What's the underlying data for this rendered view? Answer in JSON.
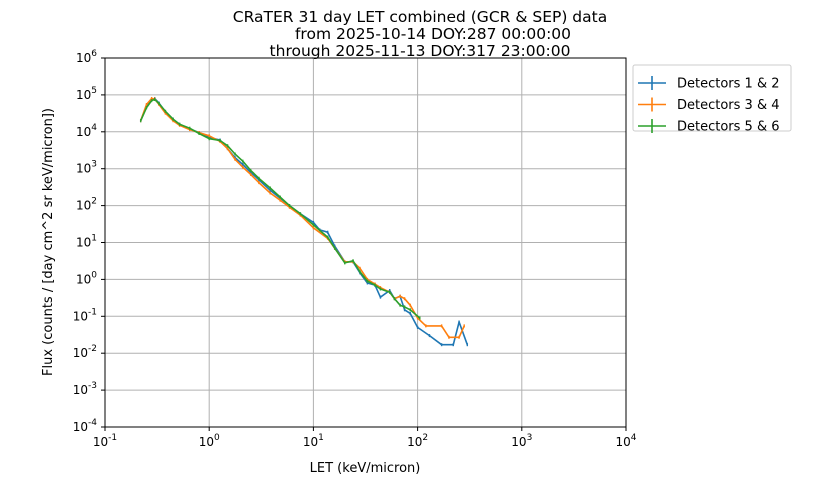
{
  "chart_data": {
    "type": "line",
    "title_lines": [
      "CRaTER 31 day LET combined (GCR & SEP) data",
      "from 2025-10-14 DOY:287 00:00:00",
      "through 2025-11-13 DOY:317 23:00:00"
    ],
    "xlabel": "LET (keV/micron)",
    "ylabel": "Flux (counts / [day cm^2 sr keV/micron])",
    "xscale": "log",
    "yscale": "log",
    "xlim": [
      0.1,
      10000
    ],
    "ylim": [
      0.0001,
      1000000
    ],
    "grid": true,
    "legend_position": "outside-top-right",
    "x_ticks": [
      {
        "exp": "-1"
      },
      {
        "exp": "0"
      },
      {
        "exp": "1"
      },
      {
        "exp": "2"
      },
      {
        "exp": "3"
      },
      {
        "exp": "4"
      }
    ],
    "y_ticks": [
      {
        "exp": "-4"
      },
      {
        "exp": "-3"
      },
      {
        "exp": "-2"
      },
      {
        "exp": "-1"
      },
      {
        "exp": "0"
      },
      {
        "exp": "1"
      },
      {
        "exp": "2"
      },
      {
        "exp": "3"
      },
      {
        "exp": "4"
      },
      {
        "exp": "5"
      },
      {
        "exp": "6"
      }
    ],
    "series": [
      {
        "name": "Detectors 1 & 2",
        "color": "#1f77b4",
        "x": [
          0.22,
          0.25,
          0.28,
          0.3,
          0.33,
          0.38,
          0.45,
          0.52,
          0.65,
          0.8,
          1.0,
          1.27,
          1.5,
          1.77,
          2.1,
          2.5,
          3.0,
          3.85,
          4.8,
          5.9,
          7.5,
          10,
          11.5,
          13.7,
          16,
          20,
          24,
          28,
          33,
          39,
          44,
          54,
          60,
          68,
          75,
          85,
          100,
          130,
          170,
          220,
          250,
          300
        ],
        "y": [
          20000,
          50000,
          75000,
          80000,
          60000,
          35000,
          22000,
          16000,
          12000,
          9500,
          7000,
          6000,
          3500,
          2000,
          1300,
          800,
          500,
          260,
          160,
          100,
          60,
          35,
          22,
          19,
          8,
          3,
          3,
          1.5,
          0.8,
          0.7,
          0.33,
          0.5,
          0.3,
          0.35,
          0.15,
          0.12,
          0.05,
          0.03,
          0.017,
          0.017,
          0.07,
          0.017
        ]
      },
      {
        "name": "Detectors 3 & 4",
        "color": "#ff7f0e",
        "x": [
          0.22,
          0.25,
          0.28,
          0.3,
          0.33,
          0.38,
          0.45,
          0.52,
          0.65,
          0.8,
          1.0,
          1.27,
          1.5,
          1.77,
          2.1,
          2.5,
          3.0,
          3.85,
          4.8,
          5.9,
          7.5,
          10,
          13.7,
          16,
          20,
          24,
          28,
          33,
          39,
          44,
          54,
          60,
          68,
          75,
          85,
          100,
          120,
          170,
          200,
          250,
          280
        ],
        "y": [
          20000,
          55000,
          80000,
          78000,
          55000,
          32000,
          20000,
          15000,
          11500,
          9500,
          7800,
          5500,
          3500,
          1800,
          1100,
          700,
          420,
          220,
          140,
          90,
          55,
          25,
          13,
          7,
          3,
          3,
          2,
          1,
          0.75,
          0.6,
          0.45,
          0.3,
          0.35,
          0.3,
          0.2,
          0.09,
          0.055,
          0.055,
          0.027,
          0.027,
          0.055
        ]
      },
      {
        "name": "Detectors 5 & 6",
        "color": "#2ca02c",
        "x": [
          0.22,
          0.25,
          0.28,
          0.3,
          0.33,
          0.38,
          0.45,
          0.52,
          0.65,
          0.8,
          1.0,
          1.27,
          1.5,
          1.77,
          2.1,
          2.5,
          3.0,
          3.85,
          4.8,
          5.9,
          7.5,
          10,
          13.7,
          16,
          20,
          24,
          28,
          33,
          39,
          44,
          54,
          60,
          68,
          75,
          85,
          105
        ],
        "y": [
          20000,
          45000,
          70000,
          75000,
          58000,
          36000,
          22000,
          16000,
          12500,
          9000,
          6500,
          5800,
          4200,
          2500,
          1600,
          900,
          550,
          300,
          170,
          100,
          60,
          30,
          14,
          7,
          2.8,
          3.2,
          1.6,
          0.9,
          0.7,
          0.55,
          0.45,
          0.3,
          0.2,
          0.18,
          0.15,
          0.09
        ]
      }
    ]
  }
}
